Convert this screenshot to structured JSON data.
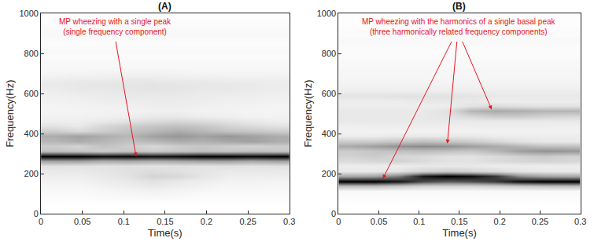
{
  "chart_data": [
    {
      "type": "heatmap",
      "title": "(A)",
      "x_label": "Time(s)",
      "y_label": "Frequency(Hz)",
      "xlim": [
        0,
        0.3
      ],
      "xticks": [
        0,
        0.05,
        0.1,
        0.15,
        0.2,
        0.25,
        0.3
      ],
      "ylim": [
        0,
        1000
      ],
      "yticks": [
        0,
        200,
        400,
        600,
        800,
        1000
      ],
      "x": [
        0.015,
        0.045,
        0.075,
        0.105,
        0.135,
        0.165,
        0.195,
        0.225,
        0.255,
        0.285
      ],
      "y": [
        12.5,
        37.5,
        62.5,
        87.5,
        112.5,
        137.5,
        162.5,
        187.5,
        212.5,
        237.5,
        262.5,
        287.5,
        312.5,
        337.5,
        362.5,
        387.5,
        412.5,
        437.5,
        462.5,
        487.5,
        512.5,
        537.5,
        562.5,
        587.5,
        612.5,
        637.5,
        662.5,
        687.5,
        712.5,
        737.5,
        762.5,
        787.5,
        812.5,
        837.5,
        862.5,
        887.5,
        912.5,
        937.5,
        962.5,
        987.5
      ],
      "cells": [
        [
          0.02,
          0.02,
          0.02,
          0.02,
          0.02,
          0.02,
          0.02,
          0.02,
          0.02,
          0.02
        ],
        [
          0.02,
          0.02,
          0.02,
          0.02,
          0.02,
          0.02,
          0.02,
          0.02,
          0.02,
          0.02
        ],
        [
          0.03,
          0.03,
          0.03,
          0.03,
          0.03,
          0.03,
          0.03,
          0.03,
          0.03,
          0.03
        ],
        [
          0.04,
          0.04,
          0.05,
          0.05,
          0.06,
          0.05,
          0.04,
          0.04,
          0.04,
          0.04
        ],
        [
          0.05,
          0.05,
          0.06,
          0.07,
          0.08,
          0.07,
          0.06,
          0.05,
          0.05,
          0.05
        ],
        [
          0.06,
          0.06,
          0.08,
          0.1,
          0.12,
          0.1,
          0.08,
          0.06,
          0.06,
          0.06
        ],
        [
          0.08,
          0.08,
          0.1,
          0.12,
          0.15,
          0.12,
          0.1,
          0.08,
          0.08,
          0.07
        ],
        [
          0.1,
          0.1,
          0.12,
          0.15,
          0.22,
          0.2,
          0.14,
          0.1,
          0.1,
          0.1
        ],
        [
          0.12,
          0.12,
          0.14,
          0.16,
          0.18,
          0.16,
          0.14,
          0.12,
          0.12,
          0.12
        ],
        [
          0.16,
          0.15,
          0.15,
          0.16,
          0.15,
          0.16,
          0.15,
          0.16,
          0.15,
          0.16
        ],
        [
          0.45,
          0.45,
          0.4,
          0.42,
          0.4,
          0.42,
          0.45,
          0.45,
          0.42,
          0.45
        ],
        [
          0.95,
          0.95,
          0.92,
          0.93,
          0.9,
          0.92,
          0.95,
          0.95,
          0.93,
          0.95
        ],
        [
          0.3,
          0.28,
          0.25,
          0.28,
          0.25,
          0.28,
          0.3,
          0.28,
          0.3,
          0.28
        ],
        [
          0.25,
          0.22,
          0.3,
          0.25,
          0.2,
          0.25,
          0.28,
          0.25,
          0.22,
          0.25
        ],
        [
          0.35,
          0.4,
          0.35,
          0.3,
          0.35,
          0.4,
          0.38,
          0.42,
          0.45,
          0.4
        ],
        [
          0.4,
          0.45,
          0.4,
          0.35,
          0.45,
          0.5,
          0.45,
          0.5,
          0.45,
          0.4
        ],
        [
          0.25,
          0.2,
          0.25,
          0.3,
          0.35,
          0.4,
          0.35,
          0.3,
          0.28,
          0.25
        ],
        [
          0.15,
          0.12,
          0.2,
          0.25,
          0.28,
          0.3,
          0.28,
          0.22,
          0.18,
          0.15
        ],
        [
          0.1,
          0.1,
          0.12,
          0.15,
          0.18,
          0.2,
          0.18,
          0.15,
          0.12,
          0.1
        ],
        [
          0.08,
          0.08,
          0.09,
          0.1,
          0.12,
          0.12,
          0.1,
          0.09,
          0.08,
          0.08
        ],
        [
          0.07,
          0.07,
          0.08,
          0.08,
          0.09,
          0.09,
          0.08,
          0.08,
          0.07,
          0.07
        ],
        [
          0.07,
          0.08,
          0.08,
          0.09,
          0.1,
          0.1,
          0.09,
          0.08,
          0.08,
          0.07
        ],
        [
          0.08,
          0.09,
          0.1,
          0.1,
          0.11,
          0.11,
          0.1,
          0.09,
          0.09,
          0.08
        ],
        [
          0.09,
          0.1,
          0.11,
          0.12,
          0.12,
          0.12,
          0.11,
          0.1,
          0.1,
          0.09
        ],
        [
          0.1,
          0.12,
          0.12,
          0.13,
          0.14,
          0.13,
          0.12,
          0.12,
          0.11,
          0.1
        ],
        [
          0.12,
          0.13,
          0.14,
          0.14,
          0.15,
          0.14,
          0.13,
          0.13,
          0.12,
          0.11
        ],
        [
          0.11,
          0.12,
          0.12,
          0.13,
          0.13,
          0.12,
          0.12,
          0.11,
          0.11,
          0.1
        ],
        [
          0.08,
          0.09,
          0.09,
          0.1,
          0.1,
          0.09,
          0.09,
          0.08,
          0.08,
          0.08
        ],
        [
          0.06,
          0.06,
          0.07,
          0.07,
          0.07,
          0.07,
          0.06,
          0.06,
          0.06,
          0.06
        ],
        [
          0.05,
          0.05,
          0.05,
          0.05,
          0.05,
          0.05,
          0.05,
          0.05,
          0.05,
          0.05
        ],
        [
          0.05,
          0.05,
          0.05,
          0.05,
          0.05,
          0.05,
          0.05,
          0.05,
          0.05,
          0.05
        ],
        [
          0.04,
          0.04,
          0.04,
          0.04,
          0.04,
          0.04,
          0.04,
          0.04,
          0.04,
          0.04
        ],
        [
          0.05,
          0.05,
          0.05,
          0.05,
          0.05,
          0.05,
          0.05,
          0.05,
          0.05,
          0.05
        ],
        [
          0.04,
          0.04,
          0.04,
          0.04,
          0.04,
          0.04,
          0.04,
          0.04,
          0.04,
          0.04
        ],
        [
          0.04,
          0.04,
          0.04,
          0.04,
          0.04,
          0.04,
          0.04,
          0.04,
          0.04,
          0.04
        ],
        [
          0.05,
          0.05,
          0.05,
          0.05,
          0.05,
          0.05,
          0.05,
          0.05,
          0.05,
          0.05
        ],
        [
          0.05,
          0.05,
          0.05,
          0.05,
          0.05,
          0.05,
          0.05,
          0.05,
          0.05,
          0.05
        ],
        [
          0.04,
          0.04,
          0.04,
          0.04,
          0.04,
          0.04,
          0.04,
          0.04,
          0.04,
          0.04
        ],
        [
          0.03,
          0.03,
          0.03,
          0.03,
          0.03,
          0.03,
          0.03,
          0.03,
          0.03,
          0.03
        ],
        [
          0.03,
          0.03,
          0.03,
          0.03,
          0.03,
          0.03,
          0.03,
          0.03,
          0.03,
          0.03
        ]
      ],
      "annotations": [
        {
          "lines": [
            "MP wheezing with a single peak",
            "(single frequency component)"
          ],
          "color": "#e8141c",
          "points": [
            [
              0.115,
              285
            ]
          ]
        }
      ]
    },
    {
      "type": "heatmap",
      "title": "(B)",
      "x_label": "Time(s)",
      "y_label": "Frequency(Hz)",
      "xlim": [
        0,
        0.3
      ],
      "xticks": [
        0,
        0.05,
        0.1,
        0.15,
        0.2,
        0.25,
        0.3
      ],
      "ylim": [
        0,
        1000
      ],
      "yticks": [
        0,
        200,
        400,
        600,
        800,
        1000
      ],
      "x": [
        0.015,
        0.045,
        0.075,
        0.105,
        0.135,
        0.165,
        0.195,
        0.225,
        0.255,
        0.285
      ],
      "y": [
        12.5,
        37.5,
        62.5,
        87.5,
        112.5,
        137.5,
        162.5,
        187.5,
        212.5,
        237.5,
        262.5,
        287.5,
        312.5,
        337.5,
        362.5,
        387.5,
        412.5,
        437.5,
        462.5,
        487.5,
        512.5,
        537.5,
        562.5,
        587.5,
        612.5,
        637.5,
        662.5,
        687.5,
        712.5,
        737.5,
        762.5,
        787.5,
        812.5,
        837.5,
        862.5,
        887.5,
        912.5,
        937.5,
        962.5,
        987.5
      ],
      "cells": [
        [
          0.02,
          0.02,
          0.02,
          0.02,
          0.02,
          0.02,
          0.02,
          0.02,
          0.02,
          0.02
        ],
        [
          0.02,
          0.02,
          0.02,
          0.02,
          0.02,
          0.02,
          0.02,
          0.02,
          0.02,
          0.02
        ],
        [
          0.03,
          0.03,
          0.03,
          0.03,
          0.03,
          0.03,
          0.03,
          0.03,
          0.03,
          0.03
        ],
        [
          0.04,
          0.04,
          0.04,
          0.04,
          0.04,
          0.04,
          0.04,
          0.04,
          0.04,
          0.04
        ],
        [
          0.05,
          0.05,
          0.05,
          0.05,
          0.05,
          0.05,
          0.05,
          0.05,
          0.05,
          0.05
        ],
        [
          0.3,
          0.3,
          0.25,
          0.2,
          0.2,
          0.2,
          0.22,
          0.25,
          0.28,
          0.3
        ],
        [
          0.92,
          0.92,
          0.85,
          0.7,
          0.65,
          0.68,
          0.75,
          0.88,
          0.92,
          0.92
        ],
        [
          0.4,
          0.42,
          0.55,
          0.85,
          0.92,
          0.88,
          0.75,
          0.5,
          0.42,
          0.4
        ],
        [
          0.12,
          0.12,
          0.15,
          0.22,
          0.25,
          0.22,
          0.18,
          0.14,
          0.12,
          0.12
        ],
        [
          0.1,
          0.1,
          0.1,
          0.12,
          0.12,
          0.12,
          0.1,
          0.1,
          0.1,
          0.1
        ],
        [
          0.18,
          0.2,
          0.22,
          0.18,
          0.15,
          0.15,
          0.18,
          0.2,
          0.22,
          0.2
        ],
        [
          0.22,
          0.25,
          0.2,
          0.18,
          0.15,
          0.15,
          0.18,
          0.22,
          0.25,
          0.22
        ],
        [
          0.25,
          0.28,
          0.3,
          0.32,
          0.3,
          0.28,
          0.35,
          0.45,
          0.5,
          0.48
        ],
        [
          0.4,
          0.45,
          0.5,
          0.52,
          0.5,
          0.45,
          0.4,
          0.35,
          0.3,
          0.3
        ],
        [
          0.25,
          0.25,
          0.28,
          0.3,
          0.28,
          0.25,
          0.2,
          0.15,
          0.12,
          0.12
        ],
        [
          0.1,
          0.1,
          0.12,
          0.12,
          0.12,
          0.12,
          0.1,
          0.1,
          0.1,
          0.1
        ],
        [
          0.08,
          0.08,
          0.08,
          0.08,
          0.08,
          0.08,
          0.08,
          0.08,
          0.08,
          0.08
        ],
        [
          0.09,
          0.1,
          0.1,
          0.1,
          0.1,
          0.1,
          0.1,
          0.1,
          0.1,
          0.09
        ],
        [
          0.12,
          0.12,
          0.12,
          0.12,
          0.12,
          0.12,
          0.12,
          0.12,
          0.12,
          0.12
        ],
        [
          0.12,
          0.12,
          0.12,
          0.12,
          0.14,
          0.2,
          0.25,
          0.25,
          0.22,
          0.2
        ],
        [
          0.12,
          0.12,
          0.12,
          0.12,
          0.15,
          0.35,
          0.4,
          0.38,
          0.35,
          0.35
        ],
        [
          0.1,
          0.1,
          0.1,
          0.1,
          0.1,
          0.15,
          0.18,
          0.16,
          0.15,
          0.15
        ],
        [
          0.1,
          0.1,
          0.1,
          0.12,
          0.12,
          0.12,
          0.1,
          0.1,
          0.1,
          0.1
        ],
        [
          0.14,
          0.14,
          0.15,
          0.15,
          0.15,
          0.14,
          0.12,
          0.12,
          0.12,
          0.12
        ],
        [
          0.1,
          0.1,
          0.1,
          0.1,
          0.1,
          0.1,
          0.1,
          0.1,
          0.1,
          0.1
        ],
        [
          0.08,
          0.08,
          0.08,
          0.08,
          0.08,
          0.08,
          0.08,
          0.08,
          0.08,
          0.08
        ],
        [
          0.07,
          0.07,
          0.07,
          0.07,
          0.07,
          0.07,
          0.07,
          0.07,
          0.07,
          0.07
        ],
        [
          0.06,
          0.06,
          0.06,
          0.06,
          0.06,
          0.06,
          0.06,
          0.06,
          0.06,
          0.06
        ],
        [
          0.06,
          0.06,
          0.06,
          0.06,
          0.06,
          0.06,
          0.06,
          0.06,
          0.06,
          0.06
        ],
        [
          0.05,
          0.05,
          0.05,
          0.05,
          0.05,
          0.05,
          0.05,
          0.05,
          0.05,
          0.05
        ],
        [
          0.05,
          0.05,
          0.05,
          0.05,
          0.05,
          0.05,
          0.05,
          0.05,
          0.05,
          0.05
        ],
        [
          0.04,
          0.04,
          0.04,
          0.04,
          0.04,
          0.04,
          0.04,
          0.04,
          0.04,
          0.04
        ],
        [
          0.04,
          0.04,
          0.04,
          0.04,
          0.04,
          0.04,
          0.04,
          0.04,
          0.04,
          0.04
        ],
        [
          0.04,
          0.04,
          0.04,
          0.04,
          0.04,
          0.04,
          0.04,
          0.04,
          0.04,
          0.04
        ],
        [
          0.05,
          0.05,
          0.05,
          0.05,
          0.05,
          0.05,
          0.05,
          0.05,
          0.05,
          0.05
        ],
        [
          0.04,
          0.04,
          0.04,
          0.04,
          0.04,
          0.04,
          0.04,
          0.04,
          0.04,
          0.04
        ],
        [
          0.04,
          0.04,
          0.04,
          0.04,
          0.04,
          0.04,
          0.04,
          0.04,
          0.04,
          0.04
        ],
        [
          0.03,
          0.03,
          0.03,
          0.03,
          0.03,
          0.03,
          0.03,
          0.03,
          0.03,
          0.03
        ],
        [
          0.03,
          0.03,
          0.03,
          0.03,
          0.03,
          0.03,
          0.03,
          0.03,
          0.03,
          0.03
        ],
        [
          0.03,
          0.03,
          0.03,
          0.03,
          0.03,
          0.03,
          0.03,
          0.03,
          0.03,
          0.03
        ]
      ],
      "annotations": [
        {
          "lines": [
            "MP wheezing with the harmonics of a single basal peak",
            "(three harmonically related frequency components)"
          ],
          "color": "#e8141c",
          "points": [
            [
              0.055,
              175
            ],
            [
              0.135,
              350
            ],
            [
              0.19,
              520
            ]
          ]
        }
      ]
    }
  ]
}
